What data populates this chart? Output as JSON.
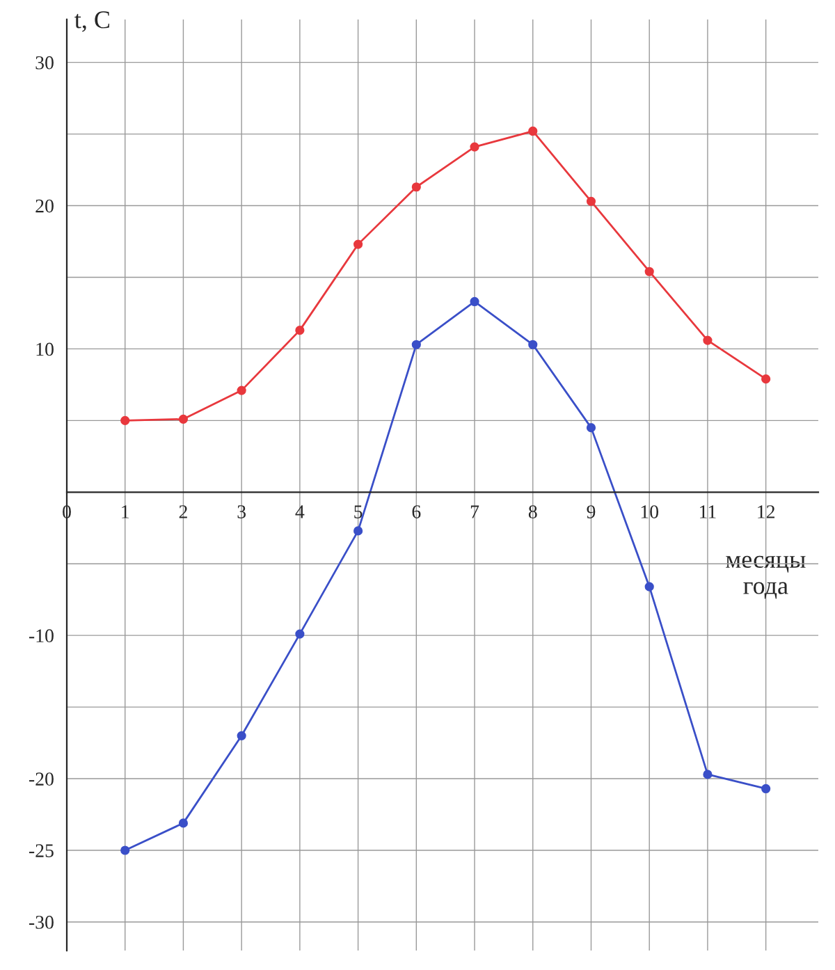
{
  "chart_data": {
    "type": "line",
    "xlabel": "месяцы\nгода",
    "ylabel": "t, C",
    "x": [
      1,
      2,
      3,
      4,
      5,
      6,
      7,
      8,
      9,
      10,
      11,
      12
    ],
    "series": [
      {
        "color": "#e8383d",
        "values": [
          5.0,
          5.1,
          7.1,
          11.3,
          17.3,
          21.3,
          24.1,
          25.2,
          20.3,
          15.4,
          10.6,
          7.9
        ]
      },
      {
        "color": "#3a4fc8",
        "values": [
          -25.0,
          -23.1,
          -17.0,
          -9.9,
          -2.7,
          10.3,
          13.3,
          10.3,
          4.5,
          -6.6,
          -19.7,
          -20.7
        ]
      }
    ],
    "xlim": [
      0,
      12.9
    ],
    "ylim": [
      -32,
      33
    ],
    "xticks": [
      {
        "value": 0,
        "label": "0"
      },
      1,
      2,
      3,
      4,
      5,
      6,
      7,
      8,
      9,
      10,
      11,
      12
    ],
    "yticks": [
      -30,
      -25,
      -20,
      {
        "value": -15,
        "label": null
      },
      -10,
      {
        "value": -5,
        "label": null
      },
      {
        "value": 5,
        "label": null
      },
      10,
      {
        "value": 15,
        "label": null
      },
      20,
      {
        "value": 25,
        "label": null
      },
      30
    ],
    "grid": true,
    "marker": "circle",
    "line_style": "solid"
  }
}
